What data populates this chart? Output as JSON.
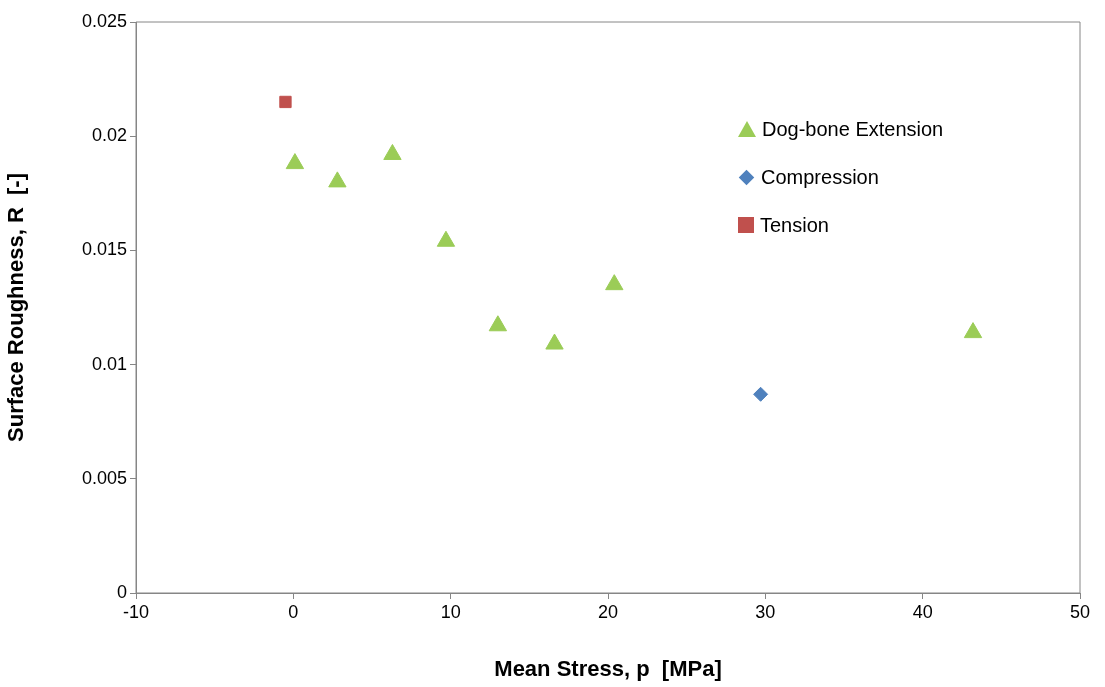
{
  "chart_data": {
    "type": "scatter",
    "xlabel": "Mean Stress, p  [MPa]",
    "ylabel": "Surface Roughness, R  [-]",
    "xlim": [
      -10,
      50
    ],
    "xticks": [
      -10,
      0,
      10,
      20,
      30,
      40,
      50
    ],
    "ylim": [
      0,
      0.025
    ],
    "yticks": [
      0,
      0.005,
      0.01,
      0.015,
      0.02,
      0.025
    ],
    "grid": false,
    "legend": "top right",
    "series": [
      {
        "name": "Dog-bone Extension",
        "color": "#9bcc57",
        "marker": "triangle",
        "x": [
          0.1,
          2.8,
          6.3,
          9.7,
          13.0,
          16.6,
          20.4,
          43.2
        ],
        "values": [
          0.0188,
          0.018,
          0.0192,
          0.0154,
          0.0117,
          0.0109,
          0.0135,
          0.0114
        ]
      },
      {
        "name": "Compression",
        "color": "#4f81bd",
        "marker": "diamond",
        "x": [
          29.7
        ],
        "values": [
          0.0087
        ]
      },
      {
        "name": "Tension",
        "color": "#c0504d",
        "marker": "square",
        "x": [
          -0.5
        ],
        "values": [
          0.0215
        ]
      }
    ]
  }
}
